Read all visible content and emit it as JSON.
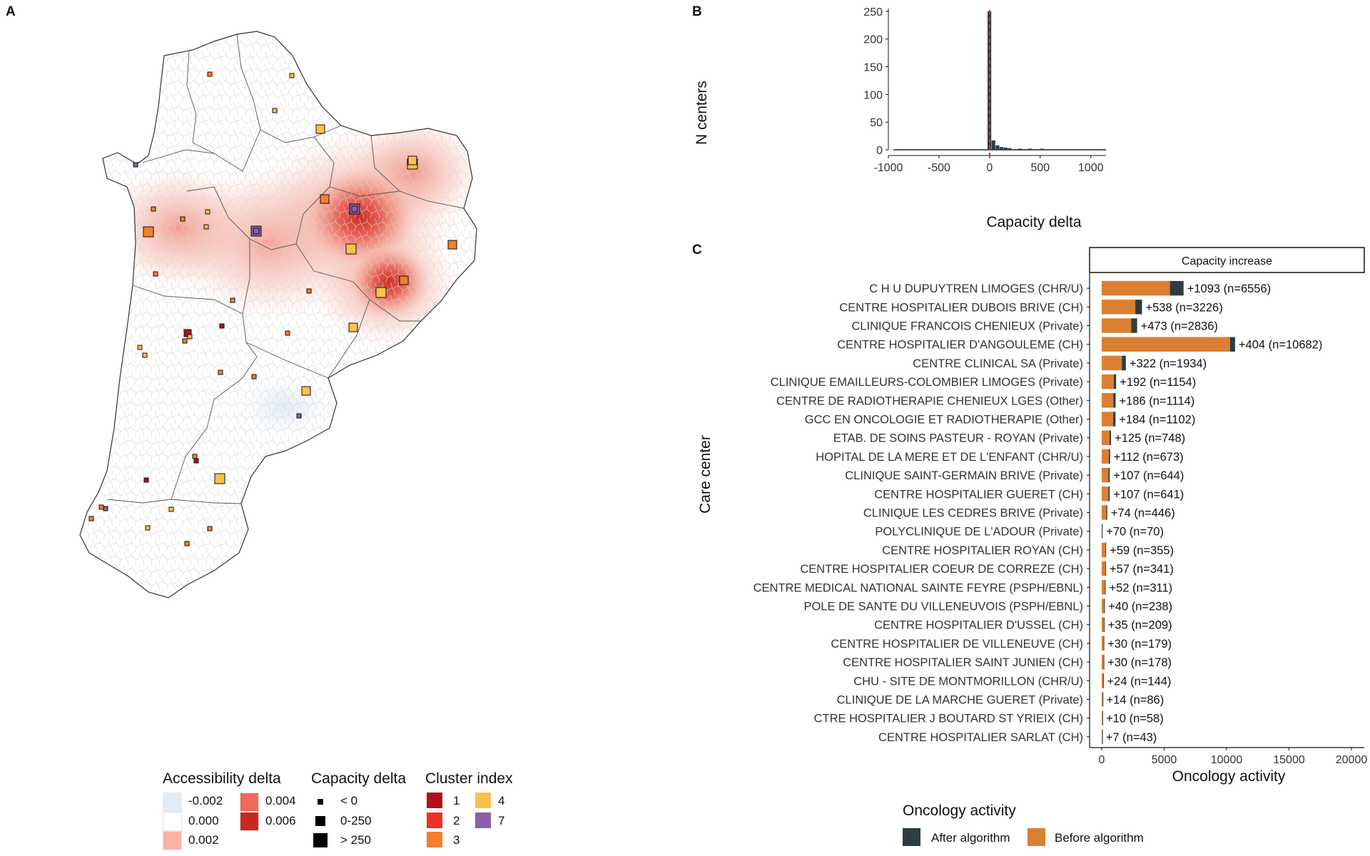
{
  "panels": {
    "a": "A",
    "b": "B",
    "c": "C"
  },
  "colors": {
    "after": "#2c3e44",
    "before": "#dc7f32",
    "dashed": "#e8262a",
    "acc_neg": "#e3ecf4",
    "acc_0": "#ffffff",
    "acc_002": "#fbb3a3",
    "acc_004": "#ec6b59",
    "acc_006": "#c9281f"
  },
  "map_legend": {
    "accessibility": {
      "title": "Accessibility delta",
      "items": [
        {
          "label": "-0.002",
          "color": "#e3ecf4"
        },
        {
          "label": "0.000",
          "color": "#ffffff"
        },
        {
          "label": "0.002",
          "color": "#fbb3a3"
        },
        {
          "label": "0.004",
          "color": "#ec6b59"
        },
        {
          "label": "0.006",
          "color": "#c9281f"
        }
      ]
    },
    "capacity": {
      "title": "Capacity delta",
      "items": [
        {
          "label": "< 0",
          "size": "small"
        },
        {
          "label": "0-250",
          "size": "medium"
        },
        {
          "label": "> 250",
          "size": "large"
        }
      ]
    },
    "cluster": {
      "title": "Cluster index",
      "items": [
        {
          "label": "1",
          "color": "#b0121b"
        },
        {
          "label": "2",
          "color": "#ee3124"
        },
        {
          "label": "3",
          "color": "#f57f2f"
        },
        {
          "label": "4",
          "color": "#f9c04b"
        },
        {
          "label": "7",
          "color": "#8c5fa8"
        }
      ]
    }
  },
  "histogram": {
    "ylabel": "N centers",
    "xlabel": "Capacity delta",
    "xticks": [
      "-1000",
      "-500",
      "0",
      "500",
      "1000"
    ],
    "yticks": [
      "0",
      "50",
      "100",
      "150",
      "200",
      "250"
    ]
  },
  "bar_panel": {
    "strip": "Capacity increase",
    "ylabel": "Care center",
    "xlabel": "Oncology activity",
    "xticks": [
      "0",
      "5000",
      "10000",
      "15000",
      "20000"
    ]
  },
  "oncology_legend": {
    "title": "Oncology activity",
    "after": "After algorithm",
    "before": "Before algorithm"
  },
  "chart_data": [
    {
      "type": "bar",
      "title": "",
      "xlabel": "Capacity delta",
      "ylabel": "N centers",
      "xlim": [
        -1000,
        1150
      ],
      "ylim": [
        0,
        255
      ],
      "bins": [
        {
          "x": -900,
          "count": 1
        },
        {
          "x": 0,
          "count": 250
        },
        {
          "x": 40,
          "count": 17
        },
        {
          "x": 80,
          "count": 8
        },
        {
          "x": 120,
          "count": 5
        },
        {
          "x": 160,
          "count": 4
        },
        {
          "x": 200,
          "count": 3
        },
        {
          "x": 300,
          "count": 2
        },
        {
          "x": 340,
          "count": 1
        },
        {
          "x": 400,
          "count": 2
        },
        {
          "x": 480,
          "count": 1
        },
        {
          "x": 520,
          "count": 2
        },
        {
          "x": 1090,
          "count": 1
        }
      ],
      "reference_line": 0
    },
    {
      "type": "bar",
      "orientation": "horizontal",
      "title": "Capacity increase",
      "xlabel": "Oncology activity",
      "ylabel": "Care center",
      "xlim": [
        0,
        20000
      ],
      "categories": [
        "C H U  DUPUYTREN  LIMOGES (CHR/U)",
        "CENTRE HOSPITALIER DUBOIS BRIVE (CH)",
        "CLINIQUE FRANCOIS CHENIEUX (Private)",
        "CENTRE HOSPITALIER D'ANGOULEME (CH)",
        "CENTRE CLINICAL SA (Private)",
        "CLINIQUE EMAILLEURS-COLOMBIER LIMOGES (Private)",
        "CENTRE DE RADIOTHERAPIE CHENIEUX LGES (Other)",
        "GCC EN ONCOLOGIE ET RADIOTHERAPIE (Other)",
        "ETAB. DE SOINS PASTEUR - ROYAN (Private)",
        "HOPITAL DE LA MERE ET DE L'ENFANT (CHR/U)",
        "CLINIQUE  SAINT-GERMAIN  BRIVE (Private)",
        "CENTRE HOSPITALIER GUERET (CH)",
        "CLINIQUE LES CEDRES BRIVE (Private)",
        "POLYCLINIQUE DE L'ADOUR (Private)",
        "CENTRE HOSPITALIER ROYAN (CH)",
        "CENTRE HOSPITALIER COEUR DE CORREZE (CH)",
        "CENTRE MEDICAL NATIONAL SAINTE FEYRE (PSPH/EBNL)",
        "POLE DE SANTE DU VILLENEUVOIS (PSPH/EBNL)",
        "CENTRE HOSPITALIER D'USSEL (CH)",
        "CENTRE HOSPITALIER DE VILLENEUVE (CH)",
        "CENTRE HOSPITALIER SAINT JUNIEN (CH)",
        "CHU - SITE DE MONTMORILLON (CHR/U)",
        "CLINIQUE DE LA MARCHE GUERET (Private)",
        "CTRE HOSPITALIER J BOUTARD ST YRIEIX (CH)",
        "CENTRE HOSPITALIER SARLAT (CH)"
      ],
      "series": [
        {
          "name": "Before algorithm",
          "values": [
            5463,
            2688,
            2363,
            10278,
            1612,
            962,
            928,
            918,
            623,
            561,
            537,
            534,
            372,
            0,
            296,
            284,
            259,
            198,
            174,
            149,
            148,
            120,
            72,
            48,
            36
          ]
        },
        {
          "name": "After algorithm",
          "values": [
            1093,
            538,
            473,
            404,
            322,
            192,
            186,
            184,
            125,
            112,
            107,
            107,
            74,
            70,
            59,
            57,
            52,
            40,
            35,
            30,
            30,
            24,
            14,
            10,
            7
          ]
        }
      ],
      "totals": [
        6556,
        3226,
        2836,
        10682,
        1934,
        1154,
        1114,
        1102,
        748,
        673,
        644,
        641,
        446,
        70,
        355,
        341,
        311,
        238,
        209,
        179,
        178,
        144,
        86,
        58,
        43
      ],
      "data_labels": [
        "+1093 (n=6556)",
        "+538 (n=3226)",
        "+473 (n=2836)",
        "+404 (n=10682)",
        "+322 (n=1934)",
        "+192 (n=1154)",
        "+186 (n=1114)",
        "+184 (n=1102)",
        "+125 (n=748)",
        "+112 (n=673)",
        "+107 (n=644)",
        "+107 (n=641)",
        "+74 (n=446)",
        "+70 (n=70)",
        "+59 (n=355)",
        "+57 (n=341)",
        "+52 (n=311)",
        "+40 (n=238)",
        "+35 (n=209)",
        "+30 (n=179)",
        "+30 (n=178)",
        "+24 (n=144)",
        "+14 (n=86)",
        "+10 (n=58)",
        "+7 (n=43)"
      ]
    }
  ]
}
